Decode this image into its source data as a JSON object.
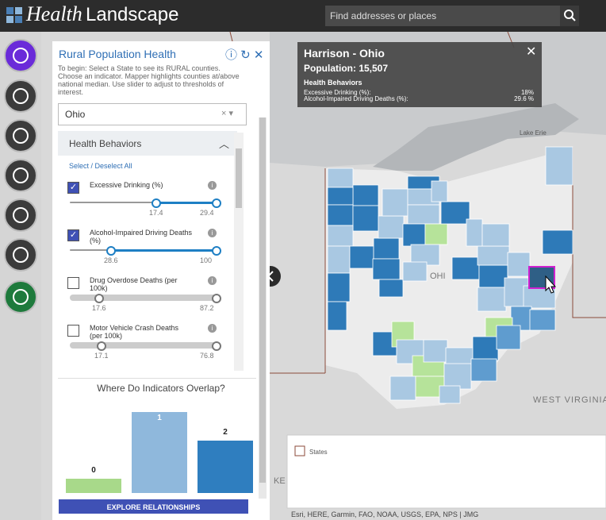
{
  "header": {
    "brand_a": "Health",
    "brand_b": "Landscape",
    "search_placeholder": "Find addresses or places"
  },
  "panel": {
    "title": "Rural Population Health",
    "instructions": "To begin: Select a State to see its RURAL counties. Choose an indicator. Mapper highlights counties at/above national median. Use slider to adjust to thresholds of interest.",
    "state": "Ohio",
    "section": "Health Behaviors",
    "select_all": "Select / Deselect All",
    "indicators": [
      {
        "label": "Excessive Drinking (%)",
        "checked": true,
        "low": "17.4",
        "high": "29.4"
      },
      {
        "label": "Alcohol-Impaired Driving Deaths (%)",
        "checked": true,
        "low": "28.6",
        "high": "100"
      },
      {
        "label": "Drug Overdose Deaths (per 100k)",
        "checked": false,
        "low": "17.6",
        "high": "87.2"
      },
      {
        "label": "Motor Vehicle Crash Deaths (per 100k)",
        "checked": false,
        "low": "17.1",
        "high": "76.8"
      }
    ],
    "overlap_chart": {
      "type": "bar",
      "title": "Where Do Indicators Overlap?",
      "categories": [
        "0",
        "1",
        "2"
      ],
      "values": [
        3,
        17,
        11
      ],
      "colors": [
        "#a8d98a",
        "#8fb8dc",
        "#2f7ebf"
      ]
    },
    "button": "EXPLORE RELATIONSHIPS"
  },
  "popup": {
    "title": "Harrison - Ohio",
    "population": "Population: 15,507",
    "section": "Health Behaviors",
    "rows": [
      {
        "label": "Excessive Drinking (%):",
        "value": "18%"
      },
      {
        "label": "Alcohol-Impaired Driving Deaths (%):",
        "value": "29.6 %"
      }
    ]
  },
  "map": {
    "lake": "Lake Erie",
    "state_label": "OHI",
    "wv": "WEST VIRGINIA",
    "ky": "KE",
    "legend": "States",
    "attribution": "Esri, HERE, Garmin, FAO, NOAA, USGS, EPA, NPS | JMG"
  }
}
